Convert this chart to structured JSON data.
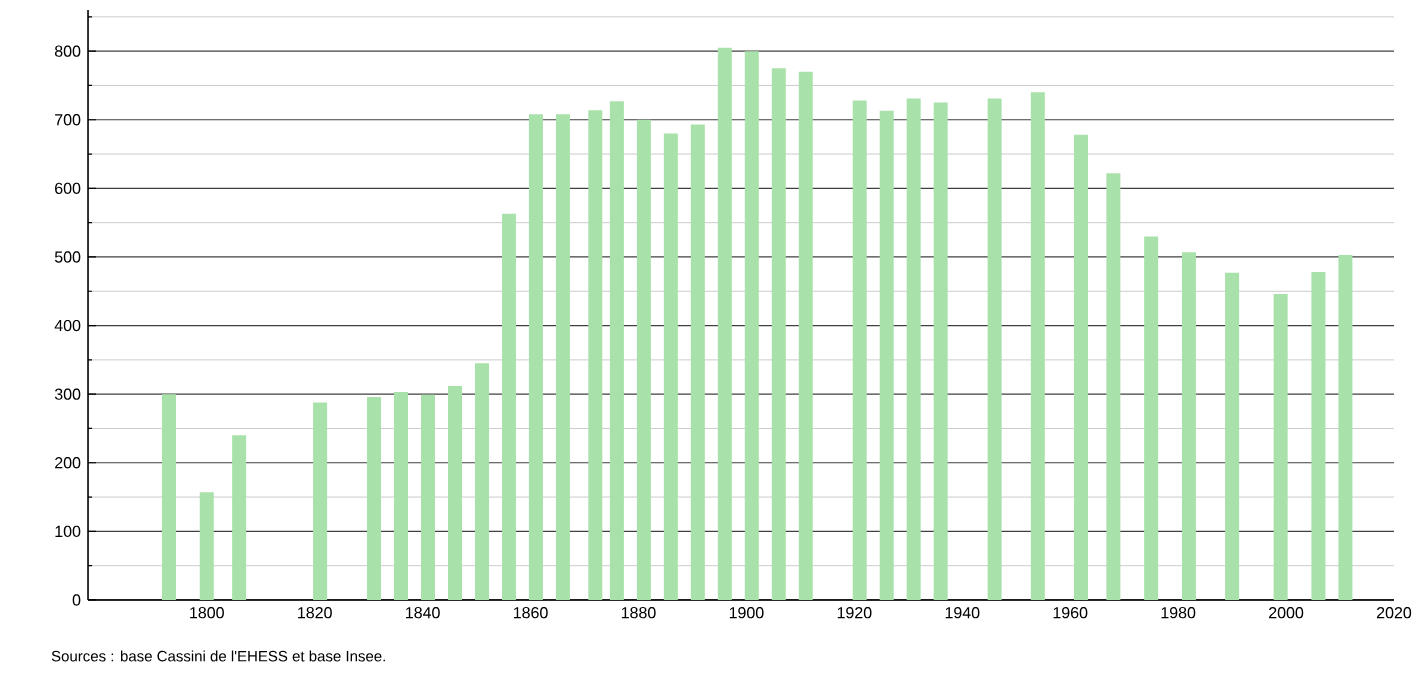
{
  "chart_data": {
    "type": "bar",
    "color": "#a8e2aa",
    "x": [
      1793,
      1800,
      1806,
      1821,
      1831,
      1836,
      1841,
      1846,
      1851,
      1856,
      1861,
      1866,
      1872,
      1876,
      1881,
      1886,
      1891,
      1896,
      1901,
      1906,
      1911,
      1921,
      1926,
      1931,
      1936,
      1946,
      1954,
      1962,
      1968,
      1975,
      1982,
      1990,
      1999,
      2006,
      2011
    ],
    "values": [
      300,
      157,
      240,
      288,
      296,
      303,
      299,
      312,
      345,
      563,
      708,
      708,
      714,
      727,
      700,
      680,
      693,
      805,
      800,
      775,
      770,
      728,
      713,
      731,
      725,
      731,
      740,
      678,
      622,
      530,
      507,
      477,
      446,
      478,
      503
    ],
    "xlim": [
      1778,
      2020
    ],
    "xticks": [
      1800,
      1820,
      1840,
      1860,
      1880,
      1900,
      1920,
      1940,
      1960,
      1980,
      2000,
      2020
    ],
    "ylim": [
      0,
      860
    ],
    "yticks": [
      0,
      {
        "value": 50,
        "label": null
      },
      100,
      {
        "value": 150,
        "label": null
      },
      200,
      {
        "value": 250,
        "label": null
      },
      300,
      {
        "value": 350,
        "label": null
      },
      400,
      {
        "value": 450,
        "label": null
      },
      500,
      {
        "value": 550,
        "label": null
      },
      600,
      {
        "value": 650,
        "label": null
      },
      700,
      {
        "value": 750,
        "label": null
      },
      800,
      {
        "value": 850,
        "label": null
      }
    ],
    "grid": "y",
    "annotations": [
      "Sources : base Cassini de l'EHESS et base Insee."
    ]
  }
}
